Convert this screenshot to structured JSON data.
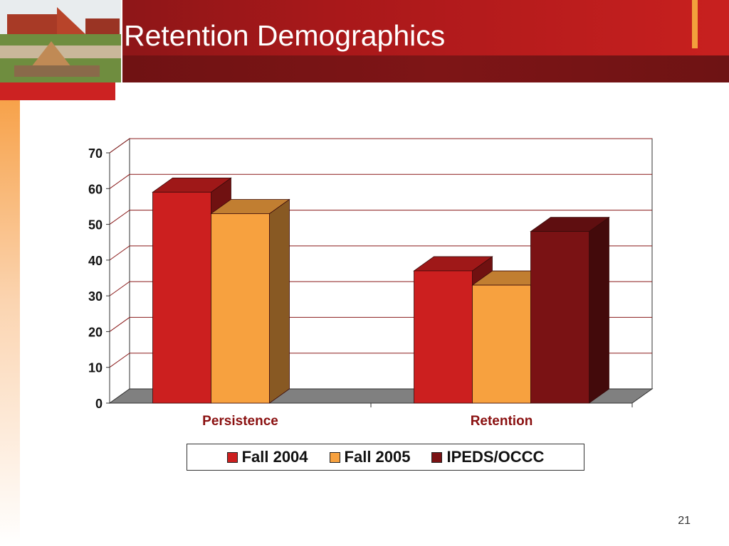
{
  "slide": {
    "title": "Retention Demographics",
    "number": "21"
  },
  "colors": {
    "header_red": "#c8201f",
    "header_dark": "#7e1516",
    "accent_orange": "#f3a03c"
  },
  "chart_data": {
    "type": "bar",
    "categories": [
      "Persistence",
      "Retention"
    ],
    "series": [
      {
        "name": "Fall 2004",
        "values": [
          59,
          37
        ],
        "color": "#cc1f1f"
      },
      {
        "name": "Fall 2005",
        "values": [
          53,
          33
        ],
        "color": "#f7a13f"
      },
      {
        "name": "IPEDS/OCCC",
        "values": [
          null,
          48
        ],
        "color": "#7a1214"
      }
    ],
    "ylim": [
      0,
      70
    ],
    "yticks": [
      "0",
      "10",
      "20",
      "30",
      "40",
      "50",
      "60",
      "70"
    ],
    "grid": true,
    "legend": "bottom",
    "three_d": true
  }
}
